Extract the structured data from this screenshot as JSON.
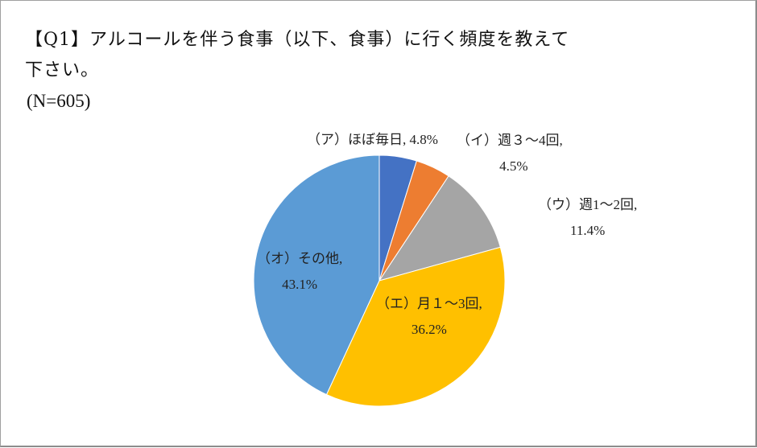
{
  "title": {
    "line1": "【Q1】アルコールを伴う食事（以下、食事）に行く頻度を教えて",
    "line2": "下さい。",
    "sample": "(N=605)"
  },
  "chart_data": {
    "type": "pie",
    "title": "【Q1】アルコールを伴う食事（以下、食事）に行く頻度を教えて下さい。",
    "subtitle": "(N=605)",
    "categories": [
      "(ア)ほぼ毎日",
      "(イ)週３～4回",
      "(ウ)週1～2回",
      "(エ)月１～3回",
      "(オ)その他"
    ],
    "values": [
      4.8,
      4.5,
      11.4,
      36.2,
      43.1
    ],
    "unit": "%",
    "colors": [
      "#4472c4",
      "#ed7d31",
      "#a5a5a5",
      "#ffc000",
      "#5b9bd5"
    ],
    "start_angle_deg": 0,
    "direction": "clockwise",
    "legend": "none",
    "data_labels": "category, percentage"
  },
  "labels": {
    "a": {
      "line1": "（ア）ほぼ毎日, 4.8%"
    },
    "i": {
      "line1": "（イ）週３～4回,",
      "line2": "4.5%"
    },
    "u": {
      "line1": "（ウ）週1～2回,",
      "line2": "11.4%"
    },
    "e": {
      "line1": "（エ）月１～3回,",
      "line2": "36.2%"
    },
    "o": {
      "line1": "（オ）その他,",
      "line2": "43.1%"
    }
  }
}
